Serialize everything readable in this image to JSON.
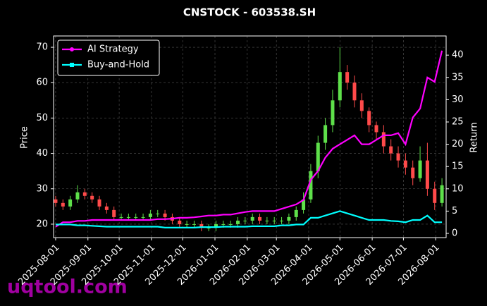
{
  "chart_data": {
    "type": "candlestick",
    "title": "CNSTOCK - 603538.SH",
    "ylabel": "Price",
    "y2label": "Return",
    "watermark": "uqtool.com",
    "x": [
      "2025-08-01",
      "2025-08-08",
      "2025-08-15",
      "2025-08-22",
      "2025-08-29",
      "2025-09-05",
      "2025-09-12",
      "2025-09-19",
      "2025-09-26",
      "2025-10-03",
      "2025-10-10",
      "2025-10-17",
      "2025-10-24",
      "2025-10-31",
      "2025-11-07",
      "2025-11-14",
      "2025-11-21",
      "2025-11-28",
      "2025-12-05",
      "2025-12-12",
      "2025-12-19",
      "2025-12-26",
      "2026-01-02",
      "2026-01-09",
      "2026-01-16",
      "2026-01-23",
      "2026-01-30",
      "2026-02-06",
      "2026-02-13",
      "2026-02-20",
      "2026-02-27",
      "2026-03-06",
      "2026-03-13",
      "2026-03-20",
      "2026-03-27",
      "2026-04-03",
      "2026-04-10",
      "2026-04-17",
      "2026-04-24",
      "2026-05-01",
      "2026-05-08",
      "2026-05-15",
      "2026-05-22",
      "2026-05-29",
      "2026-06-05",
      "2026-06-12",
      "2026-06-19",
      "2026-06-26",
      "2026-07-03",
      "2026-07-10",
      "2026-07-17",
      "2026-07-24",
      "2026-07-31",
      "2026-08-07"
    ],
    "open": [
      27,
      26,
      25,
      27,
      29,
      28,
      27,
      25,
      24,
      22,
      22,
      22,
      22,
      22,
      23,
      23,
      22,
      21,
      20,
      20,
      20,
      19,
      19,
      20,
      20,
      20,
      21,
      21,
      22,
      21,
      21,
      21,
      21,
      22,
      24,
      27,
      35,
      43,
      48,
      55,
      63,
      60,
      55,
      52,
      48,
      46,
      42,
      40,
      38,
      36,
      33,
      38,
      30,
      26
    ],
    "high": [
      28,
      27,
      28,
      31,
      30,
      29,
      28,
      26,
      25,
      23,
      23,
      23,
      23,
      24,
      24,
      24,
      23,
      22,
      21,
      21,
      21,
      20,
      21,
      21,
      21,
      22,
      22,
      23,
      23,
      22,
      22,
      22,
      23,
      25,
      29,
      37,
      45,
      50,
      58,
      70,
      65,
      62,
      57,
      53,
      49,
      48,
      44,
      42,
      40,
      38,
      42,
      43,
      32,
      33
    ],
    "low": [
      25,
      24,
      24,
      26,
      27,
      26,
      24,
      23,
      21,
      21,
      21,
      21,
      21,
      21,
      22,
      21,
      20,
      19,
      19,
      19,
      18,
      18,
      18,
      19,
      19,
      19,
      20,
      20,
      20,
      20,
      20,
      20,
      20,
      21,
      23,
      26,
      33,
      41,
      46,
      53,
      58,
      53,
      50,
      46,
      44,
      40,
      38,
      36,
      34,
      31,
      32,
      28,
      24,
      25
    ],
    "close": [
      26,
      25,
      27,
      29,
      28,
      27,
      25,
      24,
      22,
      22,
      22,
      22,
      22,
      23,
      23,
      22,
      21,
      20,
      20,
      20,
      19,
      19,
      20,
      20,
      20,
      21,
      21,
      22,
      21,
      21,
      21,
      21,
      22,
      24,
      27,
      35,
      43,
      48,
      55,
      63,
      60,
      55,
      52,
      48,
      46,
      42,
      40,
      38,
      36,
      33,
      38,
      30,
      26,
      31
    ],
    "up_color": "#5ee04a",
    "down_color": "#ff4a4a",
    "series": [
      {
        "name": "AI Strategy",
        "color": "#ff00ff",
        "axis": "y2",
        "values": [
          1.5,
          2.5,
          2.5,
          2.8,
          2.8,
          3,
          3,
          3,
          3,
          3,
          3,
          3,
          3,
          3,
          3.2,
          3.2,
          3.3,
          3.5,
          3.5,
          3.6,
          3.8,
          4,
          4,
          4.2,
          4.2,
          4.5,
          4.8,
          5,
          5,
          5,
          5,
          5.5,
          6,
          6.5,
          7.5,
          12,
          14,
          17,
          19,
          20,
          21,
          22,
          20,
          20,
          21,
          22,
          22,
          22.5,
          20,
          26,
          28,
          35,
          34,
          41
        ]
      },
      {
        "name": "Buy-and-Hold",
        "color": "#00ffff",
        "axis": "y2",
        "values": [
          2,
          2,
          2,
          1.8,
          1.8,
          1.7,
          1.6,
          1.5,
          1.5,
          1.5,
          1.5,
          1.5,
          1.5,
          1.5,
          1.5,
          1.3,
          1.3,
          1.3,
          1.3,
          1.3,
          1.4,
          1.4,
          1.4,
          1.5,
          1.5,
          1.5,
          1.5,
          1.6,
          1.6,
          1.6,
          1.6,
          1.8,
          1.8,
          2,
          2,
          3.5,
          3.5,
          4,
          4.5,
          5,
          4.5,
          4,
          3.5,
          3,
          3,
          3,
          2.8,
          2.7,
          2.5,
          3,
          3,
          4,
          2.5,
          2.5
        ]
      }
    ],
    "xlim": [
      "2025-07-30",
      "2026-08-11"
    ],
    "xticks": [
      "2025-08-01",
      "2025-09-01",
      "2025-10-01",
      "2025-11-01",
      "2025-12-01",
      "2026-01-01",
      "2026-02-01",
      "2026-03-01",
      "2026-04-01",
      "2026-05-01",
      "2026-06-01",
      "2026-07-01",
      "2026-08-01"
    ],
    "ylim": [
      16.2,
      73.2
    ],
    "yticks": [
      20,
      30,
      40,
      50,
      60,
      70
    ],
    "y2lim": [
      -0.95,
      44.3
    ],
    "y2ticks": [
      0,
      5,
      10,
      15,
      20,
      25,
      30,
      35,
      40
    ],
    "grid": true,
    "legend": "upper left"
  }
}
